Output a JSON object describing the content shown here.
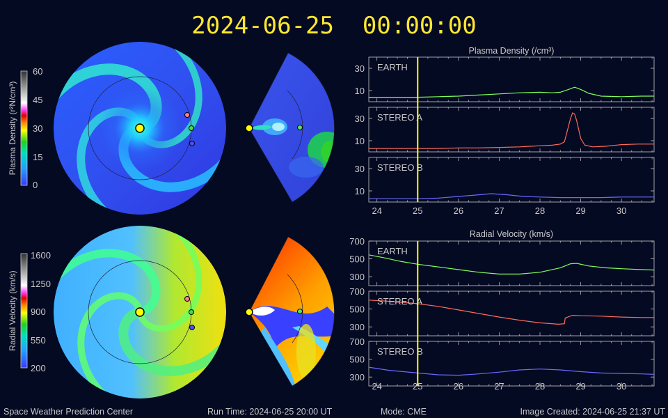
{
  "header": {
    "timestamp": "2024-06-25  00:00:00"
  },
  "footer": {
    "org": "Space Weather Prediction Center",
    "run_time": "Run Time: 2024-06-25 20:00 UT",
    "mode": "Mode: CME",
    "image_created": "Image Created: 2024-06-25 21:37 UT"
  },
  "colors": {
    "earth": "#7fff5a",
    "stereo_a": "#ff6a5a",
    "stereo_b": "#6a6aff",
    "now_line": "#ffff00",
    "title_text": "#ffe830",
    "background": "#050a23"
  },
  "colorbars": {
    "density": {
      "label": "Plasma Density (r²N/cm³)",
      "ticks": [
        "60",
        "45",
        "30",
        "15",
        "0"
      ]
    },
    "velocity": {
      "label": "Radial Velocity (km/s)",
      "ticks": [
        "1600",
        "1250",
        "900",
        "550",
        "200"
      ]
    }
  },
  "chart_data": [
    {
      "type": "line",
      "title": "Plasma Density (/cm³)",
      "xlabel": "",
      "ylabel": "",
      "x_ticks": [
        "24",
        "25",
        "26",
        "27",
        "28",
        "29",
        "30"
      ],
      "xlim": [
        23.8,
        30.8
      ],
      "now_x": 25,
      "panels": [
        {
          "name": "EARTH",
          "ylim": [
            0,
            40
          ],
          "y_ticks": [
            10,
            30
          ],
          "x": [
            23.8,
            24.5,
            25,
            25.5,
            26,
            26.5,
            27,
            27.5,
            28,
            28.3,
            28.5,
            28.7,
            28.85,
            29,
            29.2,
            29.5,
            30,
            30.5,
            30.8
          ],
          "values": [
            4,
            4,
            4,
            4.5,
            5,
            6,
            7,
            8,
            8.5,
            8,
            8.5,
            11,
            13,
            11,
            7.5,
            5,
            4.5,
            5,
            5
          ]
        },
        {
          "name": "STEREO A",
          "ylim": [
            0,
            40
          ],
          "y_ticks": [
            10,
            30
          ],
          "x": [
            23.8,
            24.5,
            25,
            25.5,
            26,
            26.5,
            27,
            27.5,
            28,
            28.3,
            28.5,
            28.6,
            28.65,
            28.75,
            28.8,
            28.85,
            28.9,
            29,
            29.1,
            29.3,
            29.6,
            30,
            30.4,
            30.8
          ],
          "values": [
            3,
            3,
            3,
            3,
            3.5,
            3.5,
            4,
            4.5,
            5.5,
            6,
            7,
            9,
            16,
            30,
            35,
            34,
            28,
            12,
            6,
            4.5,
            5,
            6.5,
            7,
            7
          ]
        },
        {
          "name": "STEREO B",
          "ylim": [
            0,
            40
          ],
          "y_ticks": [
            10,
            30
          ],
          "x": [
            23.8,
            24.5,
            25,
            25.5,
            26,
            26.5,
            26.8,
            27.2,
            27.6,
            28,
            28.5,
            29,
            29.5,
            30,
            30.8
          ],
          "values": [
            3,
            3,
            3,
            3.5,
            5,
            6.5,
            7.5,
            6.5,
            5,
            4.5,
            4,
            4,
            4,
            4.5,
            4.5
          ]
        }
      ]
    },
    {
      "type": "line",
      "title": "Radial Velocity (km/s)",
      "xlabel": "",
      "ylabel": "",
      "x_ticks": [
        "24",
        "25",
        "26",
        "27",
        "28",
        "29",
        "30"
      ],
      "xlim": [
        23.8,
        30.8
      ],
      "now_x": 25,
      "panels": [
        {
          "name": "EARTH",
          "ylim": [
            200,
            700
          ],
          "y_ticks": [
            300,
            500,
            700
          ],
          "x": [
            23.8,
            24.2,
            24.6,
            25,
            25.5,
            26,
            26.5,
            27,
            27.5,
            28,
            28.5,
            28.75,
            28.9,
            29.2,
            29.6,
            30,
            30.5,
            30.8
          ],
          "values": [
            545,
            510,
            470,
            440,
            410,
            380,
            350,
            330,
            330,
            350,
            400,
            445,
            450,
            420,
            400,
            390,
            380,
            375
          ]
        },
        {
          "name": "STEREO A",
          "ylim": [
            200,
            700
          ],
          "y_ticks": [
            300,
            500,
            700
          ],
          "x": [
            23.8,
            24.2,
            24.6,
            25,
            25.5,
            26,
            26.5,
            27,
            27.5,
            28,
            28.45,
            28.6,
            28.62,
            28.8,
            29,
            29.5,
            30,
            30.5,
            30.8
          ],
          "values": [
            600,
            590,
            575,
            560,
            530,
            490,
            450,
            410,
            375,
            345,
            330,
            335,
            400,
            430,
            425,
            420,
            410,
            405,
            405
          ]
        },
        {
          "name": "STEREO B",
          "ylim": [
            200,
            700
          ],
          "y_ticks": [
            300,
            500,
            700
          ],
          "x": [
            23.8,
            24.3,
            25,
            25.5,
            26,
            26.5,
            27,
            27.5,
            28,
            28.5,
            29,
            29.5,
            30,
            30.5,
            30.8
          ],
          "values": [
            410,
            375,
            345,
            325,
            320,
            335,
            355,
            380,
            390,
            380,
            360,
            345,
            340,
            335,
            330
          ]
        }
      ]
    }
  ]
}
